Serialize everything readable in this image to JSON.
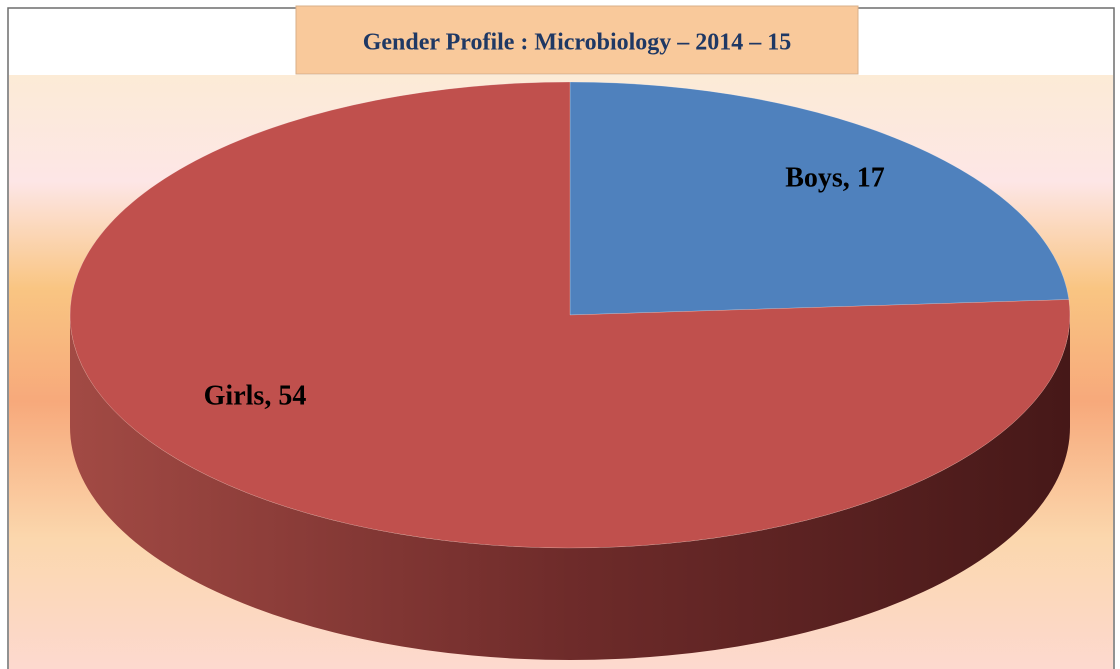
{
  "chart_data": {
    "type": "pie",
    "title": "Gender  Profile : Microbiology – 2014 – 15",
    "categories": [
      "Boys",
      "Girls"
    ],
    "values": [
      17,
      54
    ],
    "value_labels": [
      "Boys, 17",
      "Girls, 54"
    ],
    "colors": [
      "#4f81bd",
      "#c0504d"
    ],
    "three_d": true
  }
}
